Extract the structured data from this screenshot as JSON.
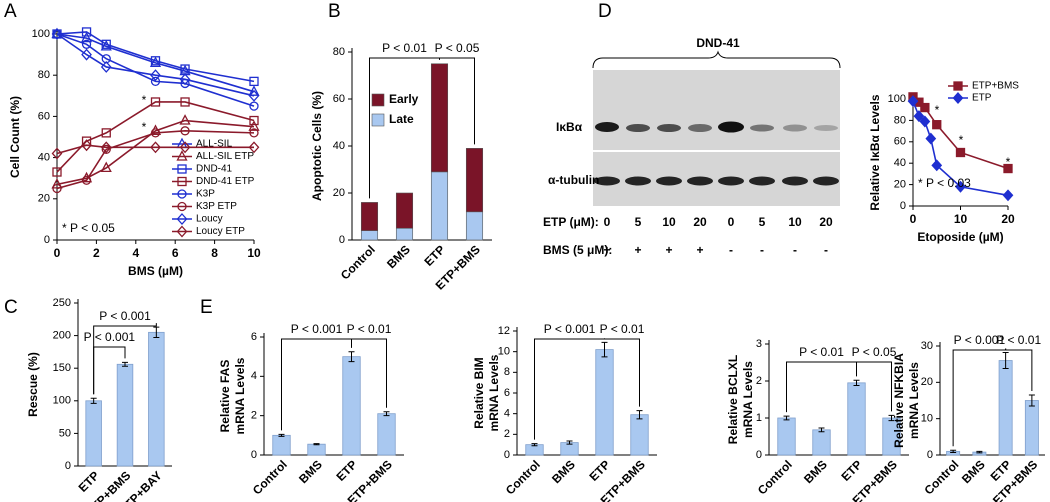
{
  "panels": [
    "A",
    "B",
    "C",
    "D",
    "E"
  ],
  "blot": {
    "title": "DND-41",
    "rows": [
      "IκBα",
      "α-tubulin"
    ],
    "etp_label": "ETP (μM):",
    "etp": [
      0,
      5,
      10,
      20,
      0,
      5,
      10,
      20
    ],
    "bms_label": "BMS (5 μM):",
    "bms": [
      "+",
      "+",
      "+",
      "+",
      "-",
      "-",
      "-",
      "-"
    ]
  },
  "chart_data": [
    {
      "type": "line",
      "xlabel": "BMS (µM)",
      "ylabel": "Cell Count (%)",
      "x": [
        0,
        1.5,
        2.5,
        5,
        6.5,
        10
      ],
      "xlim": [
        0,
        10
      ],
      "xticks": [
        0,
        2,
        4,
        6,
        8,
        10
      ],
      "ylim": [
        0,
        100
      ],
      "yticks": [
        0,
        20,
        40,
        60,
        80,
        100
      ],
      "legend": "lower right",
      "filled": false,
      "series": [
        {
          "name": "ALL-SIL",
          "color": "#1f2fd0",
          "marker": "triangle",
          "values": [
            100,
            98,
            94,
            86,
            82,
            72
          ]
        },
        {
          "name": "ALL-SIL ETP",
          "color": "#8b1a2b",
          "marker": "triangle",
          "values": [
            27,
            30,
            35,
            53,
            58,
            55
          ]
        },
        {
          "name": "DND-41",
          "color": "#1f2fd0",
          "marker": "square",
          "values": [
            100,
            101,
            95,
            87,
            83,
            77
          ]
        },
        {
          "name": "DND-41 ETP",
          "color": "#8b1a2b",
          "marker": "square",
          "values": [
            33,
            48,
            52,
            67,
            67,
            58
          ]
        },
        {
          "name": "K3P",
          "color": "#1f2fd0",
          "marker": "circle",
          "values": [
            100,
            95,
            88,
            77,
            76,
            65
          ]
        },
        {
          "name": "K3P ETP",
          "color": "#8b1a2b",
          "marker": "circle",
          "values": [
            25,
            29,
            44,
            52,
            53,
            52
          ]
        },
        {
          "name": "Loucy",
          "color": "#1f2fd0",
          "marker": "diamond",
          "values": [
            100,
            90,
            84,
            80,
            78,
            70
          ]
        },
        {
          "name": "Loucy ETP",
          "color": "#8b1a2b",
          "marker": "diamond",
          "values": [
            42,
            46,
            45,
            45,
            45,
            45
          ]
        }
      ],
      "annotations": [
        "*",
        "*",
        "* P < 0.05"
      ]
    },
    {
      "type": "stacked_bar",
      "ylabel": "Apoptotic Cells (%)",
      "categories": [
        "Control",
        "BMS",
        "ETP",
        "ETP+BMS"
      ],
      "ylim": [
        0,
        80
      ],
      "yticks": [
        0,
        20,
        40,
        60,
        80
      ],
      "legend": "upper left",
      "series": [
        {
          "name": "Late",
          "color": "#a9c8f0",
          "values": [
            4,
            5,
            29,
            12
          ]
        },
        {
          "name": "Early",
          "color": "#7a1428",
          "values": [
            12,
            15,
            46,
            27
          ]
        }
      ],
      "annotations": [
        "P < 0.01",
        "P < 0.05"
      ]
    },
    {
      "type": "bar",
      "ylabel": "Rescue (%)",
      "categories": [
        "ETP",
        "ETP+BMS",
        "ETP+BAY"
      ],
      "values": [
        100,
        156,
        205
      ],
      "errors": [
        4,
        3,
        8
      ],
      "color": "#a9c8f0",
      "ylim": [
        0,
        250
      ],
      "yticks": [
        0,
        50,
        100,
        150,
        200,
        250
      ],
      "annotations": [
        "P < 0.001",
        "P < 0.001"
      ]
    },
    {
      "type": "line",
      "xlabel": "Etoposide (µM)",
      "ylabel": "Relative IκBα Levels",
      "xlim": [
        0,
        20
      ],
      "xticks": [
        0,
        10,
        20
      ],
      "ylim": [
        0,
        100
      ],
      "yticks": [
        0,
        20,
        40,
        60,
        80,
        100
      ],
      "legend": "upper right",
      "filled": true,
      "series": [
        {
          "name": "ETP+BMS",
          "color": "#8b1a2b",
          "marker": "square",
          "x": [
            0,
            1.25,
            2.5,
            5,
            10,
            20
          ],
          "values": [
            102,
            97,
            92,
            76,
            50,
            35
          ]
        },
        {
          "name": "ETP",
          "color": "#1f2fd0",
          "marker": "diamond",
          "x": [
            0,
            1.25,
            2.5,
            3.75,
            5,
            10,
            20
          ],
          "values": [
            98,
            84,
            79,
            63,
            38,
            18,
            10
          ]
        }
      ],
      "annotations": [
        "*",
        "*",
        "*",
        "* P < 0.03"
      ]
    },
    {
      "type": "bar",
      "ylabel": [
        "Relative FAS",
        "mRNA Levels"
      ],
      "categories": [
        "Control",
        "BMS",
        "ETP",
        "ETP+BMS"
      ],
      "values": [
        1.0,
        0.55,
        5.0,
        2.1
      ],
      "errors": [
        0.05,
        0.03,
        0.25,
        0.1
      ],
      "color": "#a9c8f0",
      "ylim": [
        0,
        6
      ],
      "yticks": [
        0,
        2,
        4,
        6
      ],
      "annotations": [
        "P < 0.001",
        "P < 0.01"
      ]
    },
    {
      "type": "bar",
      "ylabel": [
        "Relative BIM",
        "mRNA Levels"
      ],
      "categories": [
        "Control",
        "BMS",
        "ETP",
        "ETP+BMS"
      ],
      "values": [
        1.0,
        1.2,
        10.2,
        3.9
      ],
      "errors": [
        0.1,
        0.15,
        0.7,
        0.4
      ],
      "color": "#a9c8f0",
      "ylim": [
        0,
        12
      ],
      "yticks": [
        0,
        2,
        4,
        6,
        8,
        10,
        12
      ],
      "annotations": [
        "P < 0.001",
        "P < 0.01"
      ]
    },
    {
      "type": "bar",
      "ylabel": [
        "Relative BCLXL",
        "mRNA Levels"
      ],
      "categories": [
        "Control",
        "BMS",
        "ETP",
        "ETP+BMS"
      ],
      "values": [
        1.0,
        0.68,
        1.95,
        1.0
      ],
      "errors": [
        0.05,
        0.05,
        0.07,
        0.07
      ],
      "color": "#a9c8f0",
      "ylim": [
        0,
        3
      ],
      "yticks": [
        0,
        1,
        2,
        3
      ],
      "annotations": [
        "P < 0.01",
        "P < 0.05"
      ]
    },
    {
      "type": "bar",
      "ylabel": [
        "Relative NFKBIA",
        "mRNA Levels"
      ],
      "categories": [
        "Control",
        "BMS",
        "ETP",
        "ETP+BMS"
      ],
      "values": [
        1.0,
        0.8,
        26,
        15
      ],
      "errors": [
        0.3,
        0.2,
        2.2,
        1.5
      ],
      "color": "#a9c8f0",
      "ylim": [
        0,
        30
      ],
      "yticks": [
        0,
        10,
        20,
        30
      ],
      "annotations": [
        "P < 0.001",
        "P < 0.01"
      ]
    }
  ]
}
